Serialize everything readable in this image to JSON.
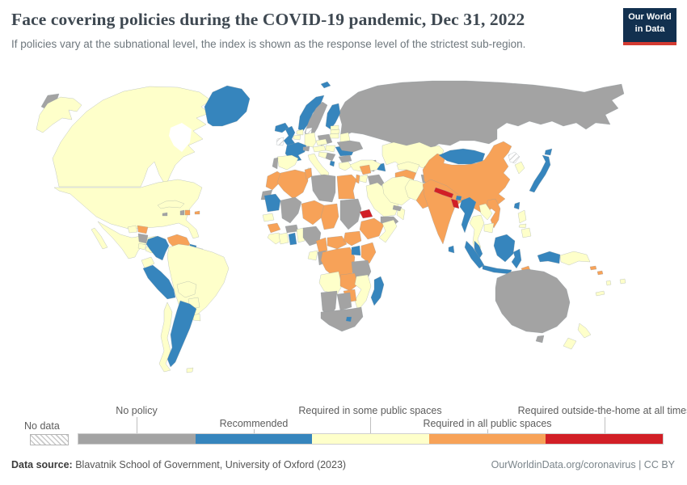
{
  "header": {
    "title": "Face covering policies during the COVID-19 pandemic, Dec 31, 2022",
    "subtitle": "If policies vary at the subnational level, the index is shown as the response level of the strictest sub-region.",
    "logo_line1": "Our World",
    "logo_line2": "in Data",
    "logo_bg": "#12304f",
    "logo_accent": "#d43b32"
  },
  "legend": {
    "no_data_label": "No data",
    "categories": [
      {
        "id": "no_policy",
        "label": "No policy",
        "color": "#a3a3a3"
      },
      {
        "id": "recommended",
        "label": "Recommended",
        "color": "#3685bd"
      },
      {
        "id": "required_some",
        "label": "Required in some public spaces",
        "color": "#feffca"
      },
      {
        "id": "required_all",
        "label": "Required in all public spaces",
        "color": "#f7a258"
      },
      {
        "id": "required_always",
        "label": "Required outside-the-home at all times",
        "color": "#d21f26"
      }
    ]
  },
  "footer": {
    "source_label": "Data source:",
    "source_value": " Blavatnik School of Government, University of Oxford (2023)",
    "credit": "OurWorldinData.org/coronavirus | CC BY"
  },
  "chart_data": {
    "type": "choropleth",
    "title": "Face covering policies during the COVID-19 pandemic",
    "date": "Dec 31, 2022",
    "legend_position": "bottom",
    "categories": [
      "No policy",
      "Recommended",
      "Required in some public spaces",
      "Required in all public spaces",
      "Required outside-the-home at all times",
      "No data"
    ],
    "values": {
      "Canada": "Required in some public spaces",
      "United States": "Required in some public spaces",
      "Mexico": "Required in some public spaces",
      "Guatemala": "Required in some public spaces",
      "Honduras": "Required in all public spaces",
      "Nicaragua": "No policy",
      "Costa Rica": "Required in some public spaces",
      "Panama": "Required in some public spaces",
      "Cuba": "Required in some public spaces",
      "Jamaica": "No policy",
      "Haiti": "No policy",
      "Dominican Republic": "Required in all public spaces",
      "Puerto Rico": "Required in all public spaces",
      "Greenland": "Recommended",
      "Colombia": "Recommended",
      "Venezuela": "Required in all public spaces",
      "Guyana": "Recommended",
      "Suriname": "No data",
      "French Guiana": "Required in some public spaces",
      "Ecuador": "Required in some public spaces",
      "Peru": "Recommended",
      "Brazil": "Required in some public spaces",
      "Bolivia": "Required in some public spaces",
      "Paraguay": "Required in some public spaces",
      "Uruguay": "Required in some public spaces",
      "Chile": "Required in some public spaces",
      "Argentina": "Recommended",
      "Falkland Islands": "Required in some public spaces",
      "Iceland": "Recommended",
      "Ireland": "No data",
      "United Kingdom": "Recommended",
      "Norway": "Recommended",
      "Sweden": "No policy",
      "Finland": "Recommended",
      "Denmark": "No data",
      "Estonia": "Required in some public spaces",
      "Latvia": "Required in some public spaces",
      "Lithuania": "Required in some public spaces",
      "Belarus": "Required in some public spaces",
      "Poland": "No policy",
      "Germany": "Required in some public spaces",
      "Netherlands": "Required in some public spaces",
      "Belgium": "Required in some public spaces",
      "France": "Recommended",
      "Switzerland": "No policy",
      "Spain": "Required in some public spaces",
      "Portugal": "No policy",
      "Italy": "Required in some public spaces",
      "Czechia": "Required in some public spaces",
      "Austria": "Required in some public spaces",
      "Hungary": "Required in some public spaces",
      "Croatia": "Required in some public spaces",
      "Serbia": "No policy",
      "Albania": "Recommended",
      "Romania": "Recommended",
      "Bulgaria": "No policy",
      "Greece": "Required in some public spaces",
      "Ukraine": "No policy",
      "Russia": "No policy",
      "Turkey": "Required in some public spaces",
      "Georgia": "No policy",
      "Armenia": "No policy",
      "Azerbaijan": "Recommended",
      "Morocco": "Required in all public spaces",
      "Western Sahara": "No policy",
      "Algeria": "Required in all public spaces",
      "Tunisia": "Required in all public spaces",
      "Libya": "No policy",
      "Egypt": "Required in all public spaces",
      "Mauritania": "Recommended",
      "Mali": "No policy",
      "Niger": "Required in all public spaces",
      "Chad": "Required in all public spaces",
      "Sudan": "No policy",
      "Eritrea": "Required outside-the-home at all times",
      "Ethiopia": "Required in all public spaces",
      "Somalia": "Required in some public spaces",
      "Senegal": "Required in some public spaces",
      "Guinea": "Required in all public spaces",
      "Liberia": "Required in some public spaces",
      "Ivory Coast": "Required in some public spaces",
      "Burkina Faso": "No policy",
      "Ghana": "Recommended",
      "Benin": "Required in some public spaces",
      "Nigeria": "No policy",
      "Cameroon": "Required in all public spaces",
      "Central African Republic": "Required in all public spaces",
      "South Sudan": "Required in all public spaces",
      "Gabon": "Required in some public spaces",
      "Republic of Congo": "No policy",
      "Democratic Republic of Congo": "Required in all public spaces",
      "Uganda": "Recommended",
      "Kenya": "Required in all public spaces",
      "Tanzania": "No policy",
      "Angola": "Required in some public spaces",
      "Zambia": "Required in all public spaces",
      "Zimbabwe": "Required in all public spaces",
      "Mozambique": "Required in some public spaces",
      "Namibia": "No policy",
      "Botswana": "No policy",
      "South Africa": "No policy",
      "Lesotho": "Recommended",
      "Madagascar": "Recommended",
      "Syria": "Required in all public spaces",
      "Iraq": "No policy",
      "Israel": "Required in all public spaces",
      "Jordan": "Required in some public spaces",
      "Saudi Arabia": "Required in some public spaces",
      "Yemen": "No policy",
      "Oman": "Required in some public spaces",
      "United Arab Emirates": "No policy",
      "Iran": "Required in some public spaces",
      "Turkmenistan": "Required in all public spaces",
      "Uzbekistan": "Required in some public spaces",
      "Kazakhstan": "Required in some public spaces",
      "Kyrgyzstan": "Recommended",
      "Tajikistan": "No policy",
      "Afghanistan": "Required in some public spaces",
      "Pakistan": "Required in all public spaces",
      "India": "Required in all public spaces",
      "Nepal": "Required outside-the-home at all times",
      "Bhutan": "Recommended",
      "Bangladesh": "Required outside-the-home at all times",
      "Sri Lanka": "Recommended",
      "China": "Required in all public spaces",
      "Mongolia": "Recommended",
      "North Korea": "No data",
      "South Korea": "Required in some public spaces",
      "Japan": "Recommended",
      "Taiwan": "Recommended",
      "Myanmar": "Recommended",
      "Thailand": "Required in some public spaces",
      "Laos": "Required in some public spaces",
      "Vietnam": "Required in all public spaces",
      "Cambodia": "Required in some public spaces",
      "Malaysia": "Recommended",
      "Indonesia": "Recommended",
      "Philippines": "Required in some public spaces",
      "Timor-Leste": "Required in all public spaces",
      "Papua New Guinea": "Required in some public spaces",
      "Solomon Islands": "Required in all public spaces",
      "Vanuatu": "Required in some public spaces",
      "Fiji": "Required in some public spaces",
      "New Caledonia": "Required in some public spaces",
      "Australia": "No policy",
      "New Zealand": "Required in some public spaces"
    }
  }
}
